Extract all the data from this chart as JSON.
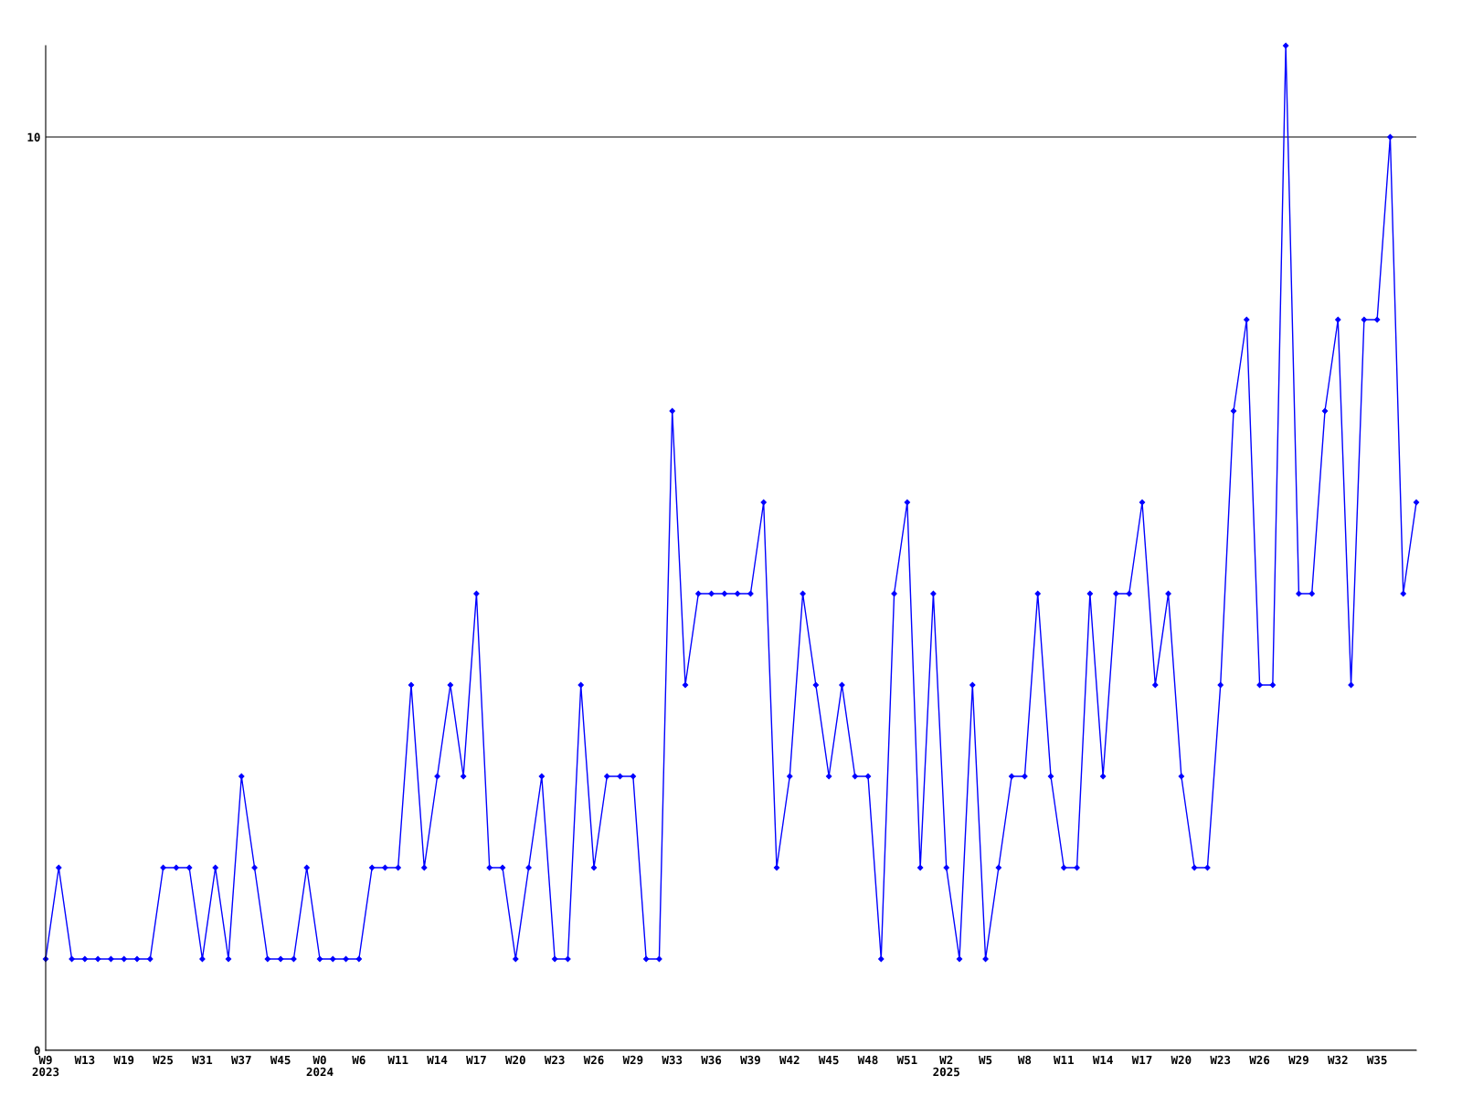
{
  "chart_data": {
    "type": "line",
    "categories": [
      "W9\n2023",
      null,
      null,
      "W13",
      null,
      null,
      "W19",
      null,
      null,
      "W25",
      null,
      null,
      "W31",
      null,
      null,
      "W37",
      null,
      null,
      "W45",
      null,
      null,
      "W0\n2024",
      null,
      null,
      "W6",
      null,
      null,
      "W11",
      null,
      null,
      "W14",
      null,
      null,
      "W17",
      null,
      null,
      "W20",
      null,
      null,
      "W23",
      null,
      null,
      "W26",
      null,
      null,
      "W29",
      null,
      null,
      "W33",
      null,
      null,
      "W36",
      null,
      null,
      "W39",
      null,
      null,
      "W42",
      null,
      null,
      "W45",
      null,
      null,
      "W48",
      null,
      null,
      "W51",
      null,
      null,
      "W2\n2025",
      null,
      null,
      "W5",
      null,
      null,
      "W8",
      null,
      null,
      "W11",
      null,
      null,
      "W14",
      null,
      null,
      "W17",
      null,
      null,
      "W20",
      null,
      null,
      "W23",
      null,
      null,
      "W26",
      null,
      null,
      "W29",
      null,
      null,
      "W32",
      null,
      null,
      "W35",
      null,
      null,
      null
    ],
    "series": [
      {
        "color": "#0000ff",
        "values": [
          1,
          2,
          1,
          1,
          1,
          1,
          1,
          1,
          1,
          2,
          2,
          2,
          1,
          2,
          1,
          3,
          2,
          1,
          1,
          1,
          2,
          1,
          1,
          1,
          1,
          2,
          2,
          2,
          4,
          2,
          3,
          4,
          3,
          5,
          2,
          2,
          1,
          2,
          3,
          1,
          1,
          4,
          2,
          3,
          3,
          3,
          1,
          1,
          7,
          4,
          5,
          5,
          5,
          5,
          5,
          6,
          2,
          3,
          5,
          4,
          3,
          4,
          3,
          3,
          1,
          5,
          6,
          2,
          5,
          2,
          1,
          4,
          1,
          2,
          3,
          3,
          5,
          3,
          2,
          2,
          5,
          3,
          5,
          5,
          6,
          4,
          5,
          3,
          2,
          2,
          4,
          7,
          8,
          4,
          4,
          11,
          5,
          5,
          7,
          8,
          4,
          8,
          8,
          10,
          5,
          6
        ]
      }
    ],
    "ylim": [
      0,
      11
    ],
    "yticks": [
      0,
      10
    ],
    "grid": "y",
    "marker": "diamond",
    "line_style": "solid"
  }
}
